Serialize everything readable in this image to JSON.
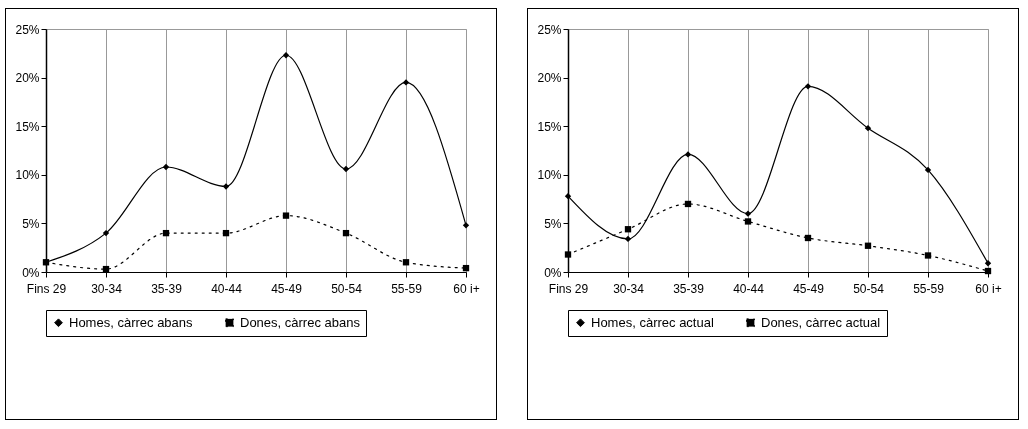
{
  "chart_data": [
    {
      "type": "line",
      "categories": [
        "Fins 29",
        "30-34",
        "35-39",
        "40-44",
        "45-49",
        "50-54",
        "55-59",
        "60 i+"
      ],
      "ylim": [
        0,
        25
      ],
      "yticks": [
        {
          "value": 0,
          "label": "0%"
        },
        {
          "value": 5,
          "label": "5%"
        },
        {
          "value": 10,
          "label": "10%"
        },
        {
          "value": 15,
          "label": "15%"
        },
        {
          "value": 20,
          "label": "20%"
        },
        {
          "value": 25,
          "label": "25%"
        }
      ],
      "grid": "x",
      "legend": "bottom",
      "series": [
        {
          "name": "Homes, càrrec abans",
          "color": "#000000",
          "marker": "diamond",
          "line_style": "solid",
          "values": [
            1,
            4,
            10.8,
            8.8,
            22.3,
            10.6,
            19.5,
            4.8
          ]
        },
        {
          "name": "Dones, càrrec abans",
          "color": "#000000",
          "marker": "square",
          "line_style": "dotted",
          "values": [
            1,
            0.3,
            4,
            4,
            5.8,
            4,
            1,
            0.4
          ]
        }
      ]
    },
    {
      "type": "line",
      "categories": [
        "Fins 29",
        "30-34",
        "35-39",
        "40-44",
        "45-49",
        "50-54",
        "55-59",
        "60 i+"
      ],
      "ylim": [
        0,
        25
      ],
      "yticks": [
        {
          "value": 0,
          "label": "0%"
        },
        {
          "value": 5,
          "label": "5%"
        },
        {
          "value": 10,
          "label": "10%"
        },
        {
          "value": 15,
          "label": "15%"
        },
        {
          "value": 20,
          "label": "20%"
        },
        {
          "value": 25,
          "label": "25%"
        }
      ],
      "grid": "x",
      "legend": "bottom",
      "series": [
        {
          "name": "Homes, càrrec actual",
          "color": "#000000",
          "marker": "diamond",
          "line_style": "solid",
          "values": [
            7.8,
            3.4,
            12.1,
            6.0,
            19.1,
            14.8,
            10.5,
            0.9
          ]
        },
        {
          "name": "Dones, càrrec actual",
          "color": "#000000",
          "marker": "square",
          "line_style": "dotted",
          "values": [
            1.8,
            4.4,
            7.0,
            5.2,
            3.5,
            2.7,
            1.7,
            0.1
          ]
        }
      ]
    }
  ]
}
